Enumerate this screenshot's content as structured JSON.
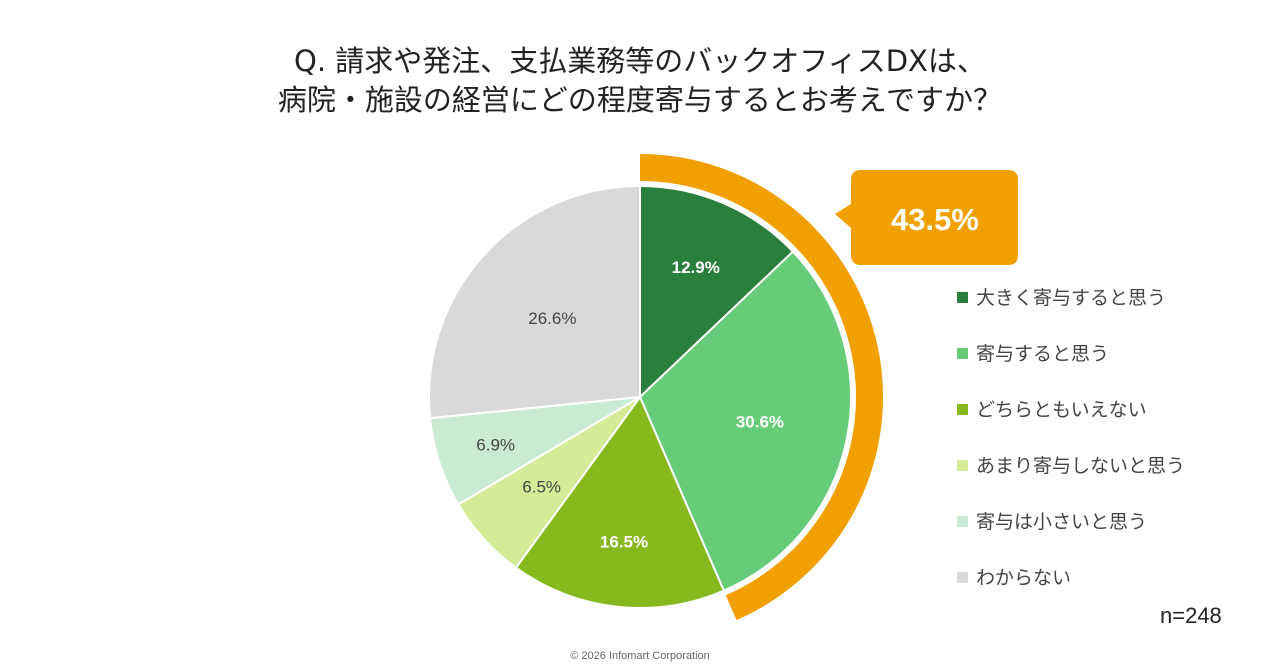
{
  "chart_data": {
    "type": "pie",
    "title": [
      "Q. 請求や発注、支払業務等のバックオフィスDXは、",
      "病院・施設の経営にどの程度寄与するとお考えですか？"
    ],
    "slices": [
      {
        "name": "大きく寄与すると思う",
        "value": 12.9,
        "label": "12.9%",
        "color": "#2a7f3c",
        "label_color": "#ffffff",
        "bold": true
      },
      {
        "name": "寄与すると思う",
        "value": 30.6,
        "label": "30.6%",
        "color": "#66cc7a",
        "label_color": "#ffffff",
        "bold": true
      },
      {
        "name": "どちらともいえない",
        "value": 16.5,
        "label": "16.5%",
        "color": "#86b91e",
        "label_color": "#ffffff",
        "bold": true
      },
      {
        "name": "あまり寄与しないと思う",
        "value": 6.5,
        "label": "6.5%",
        "color": "#d4ec97",
        "label_color": "#444444",
        "bold": false
      },
      {
        "name": "寄与は小さいと思う",
        "value": 6.9,
        "label": "6.9%",
        "color": "#c9ebd3",
        "label_color": "#444444",
        "bold": false
      },
      {
        "name": "わからない",
        "value": 26.6,
        "label": "26.6%",
        "color": "#d9d9d9",
        "label_color": "#444444",
        "bold": false
      }
    ],
    "start_angle_deg": 0,
    "direction": "clockwise",
    "highlight": {
      "value": 43.5,
      "label": "43.5%",
      "color": "#f0a000",
      "covers": [
        "大きく寄与すると思う",
        "寄与すると思う"
      ]
    },
    "legend_position": "right",
    "sample_size": "n=248"
  },
  "footer": "© 2026 Infomart Corporation"
}
